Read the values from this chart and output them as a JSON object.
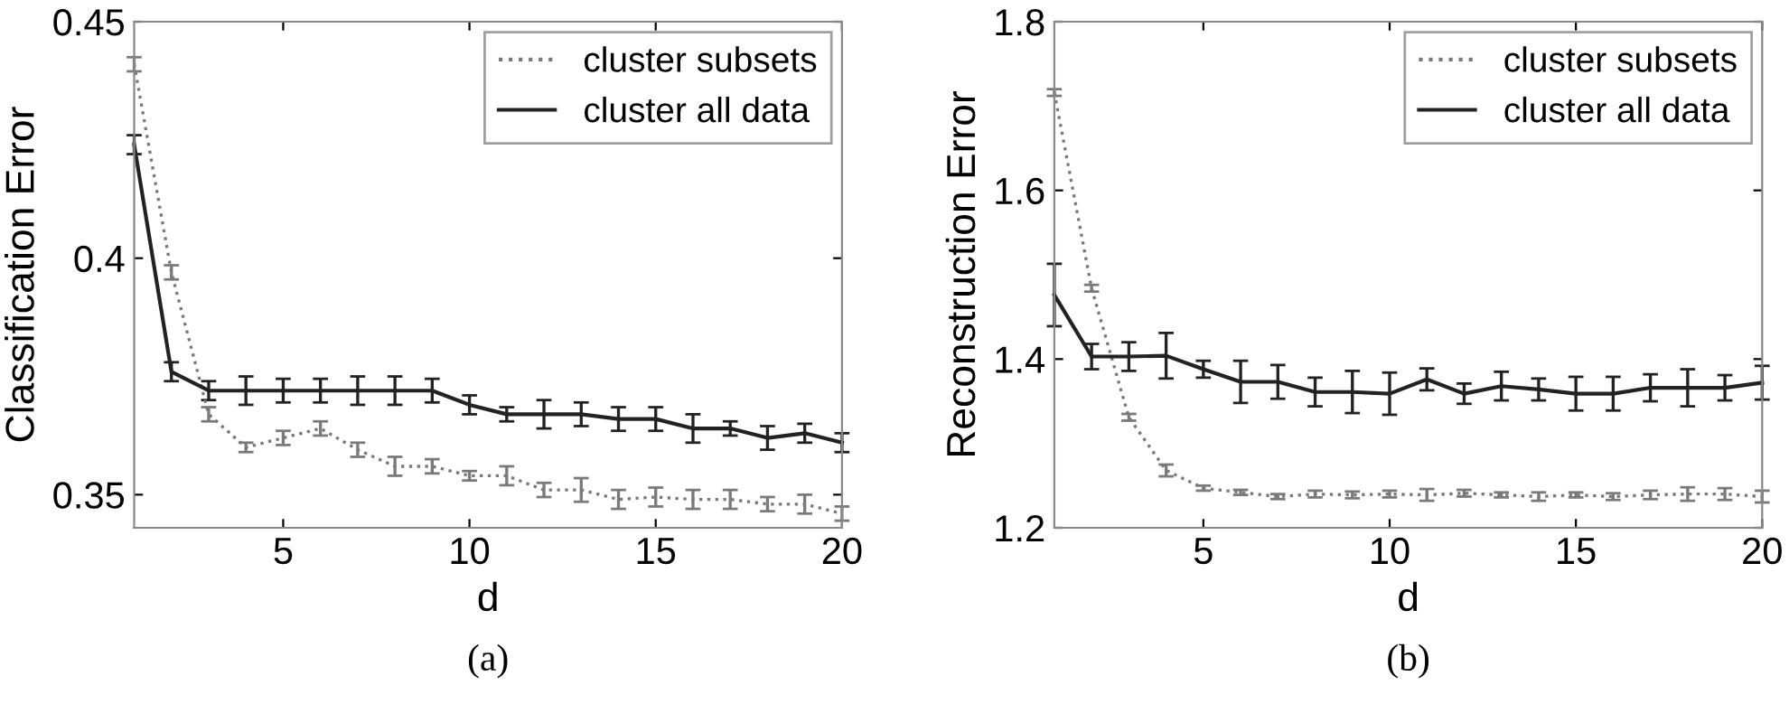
{
  "chart_data": [
    {
      "type": "line",
      "xlabel": "d",
      "ylabel": "Classification Error",
      "annotations": [
        "(a)"
      ],
      "x": [
        1,
        2,
        3,
        4,
        5,
        6,
        7,
        8,
        9,
        10,
        11,
        12,
        13,
        14,
        15,
        16,
        17,
        18,
        19,
        20
      ],
      "xlim": [
        1,
        20
      ],
      "xticks": [
        5,
        10,
        15,
        20
      ],
      "ylim": [
        0.343,
        0.45
      ],
      "yticks": [
        0.35,
        0.4,
        0.45
      ],
      "grid": false,
      "legend": "top right",
      "marker": "none",
      "series": [
        {
          "name": "cluster subsets",
          "color": "#7a7a7a",
          "line_style": "dotted",
          "values": [
            0.441,
            0.397,
            0.367,
            0.36,
            0.362,
            0.364,
            0.3595,
            0.356,
            0.356,
            0.354,
            0.354,
            0.351,
            0.351,
            0.349,
            0.3495,
            0.349,
            0.349,
            0.348,
            0.348,
            0.346
          ],
          "errors": [
            0.0015,
            0.0015,
            0.0015,
            0.001,
            0.0015,
            0.0015,
            0.0015,
            0.002,
            0.0015,
            0.001,
            0.002,
            0.0015,
            0.0025,
            0.002,
            0.002,
            0.002,
            0.002,
            0.0015,
            0.002,
            0.0015
          ]
        },
        {
          "name": "cluster all data",
          "color": "#222222",
          "line_style": "solid",
          "values": [
            0.424,
            0.376,
            0.372,
            0.372,
            0.372,
            0.372,
            0.372,
            0.372,
            0.372,
            0.369,
            0.367,
            0.367,
            0.367,
            0.366,
            0.366,
            0.364,
            0.364,
            0.362,
            0.363,
            0.361
          ],
          "errors": [
            0.002,
            0.002,
            0.002,
            0.003,
            0.0025,
            0.0025,
            0.003,
            0.003,
            0.0025,
            0.002,
            0.0015,
            0.003,
            0.0025,
            0.0025,
            0.0025,
            0.003,
            0.0015,
            0.0025,
            0.002,
            0.002
          ]
        }
      ]
    },
    {
      "type": "line",
      "xlabel": "d",
      "ylabel": "Reconstruction Error",
      "annotations": [
        "(b)"
      ],
      "x": [
        1,
        2,
        3,
        4,
        5,
        6,
        7,
        8,
        9,
        10,
        11,
        12,
        13,
        14,
        15,
        16,
        17,
        18,
        19,
        20
      ],
      "xlim": [
        1,
        20
      ],
      "xticks": [
        5,
        10,
        15,
        20
      ],
      "ylim": [
        1.2,
        1.8
      ],
      "yticks": [
        1.2,
        1.4,
        1.6,
        1.8
      ],
      "grid": false,
      "legend": "top right",
      "marker": "none",
      "series": [
        {
          "name": "cluster subsets",
          "color": "#7a7a7a",
          "line_style": "dotted",
          "values": [
            1.716,
            1.484,
            1.331,
            1.268,
            1.247,
            1.242,
            1.237,
            1.24,
            1.239,
            1.24,
            1.239,
            1.241,
            1.239,
            1.237,
            1.239,
            1.237,
            1.239,
            1.24,
            1.24,
            1.237
          ],
          "errors": [
            0.004,
            0.004,
            0.004,
            0.007,
            0.003,
            0.003,
            0.003,
            0.004,
            0.004,
            0.004,
            0.007,
            0.004,
            0.003,
            0.005,
            0.003,
            0.004,
            0.005,
            0.008,
            0.007,
            0.007
          ]
        },
        {
          "name": "cluster all data",
          "color": "#222222",
          "line_style": "solid",
          "values": [
            1.476,
            1.403,
            1.403,
            1.404,
            1.388,
            1.373,
            1.373,
            1.361,
            1.361,
            1.359,
            1.376,
            1.359,
            1.368,
            1.364,
            1.359,
            1.359,
            1.366,
            1.366,
            1.366,
            1.372
          ],
          "errors": [
            0.037,
            0.015,
            0.017,
            0.027,
            0.01,
            0.025,
            0.02,
            0.017,
            0.025,
            0.025,
            0.013,
            0.012,
            0.017,
            0.013,
            0.02,
            0.02,
            0.016,
            0.022,
            0.015,
            0.02
          ]
        }
      ]
    }
  ]
}
